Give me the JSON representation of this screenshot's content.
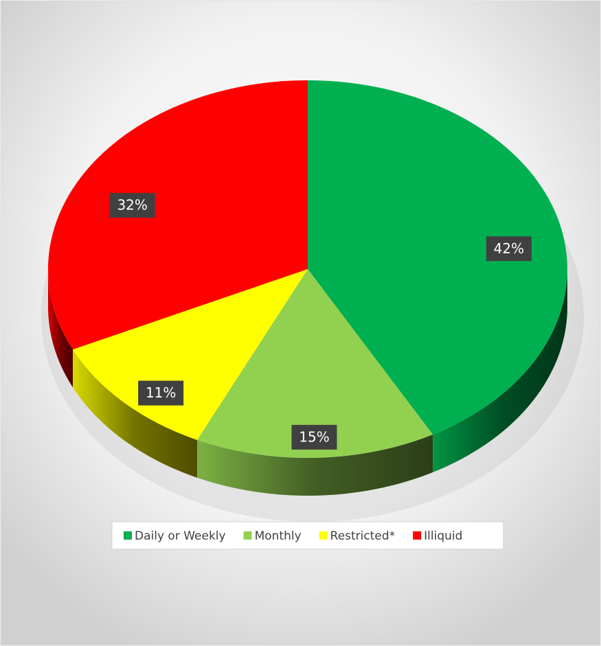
{
  "chart_data": {
    "type": "pie",
    "categories": [
      "Daily or Weekly",
      "Monthly",
      "Restricted*",
      "Illiquid"
    ],
    "values": [
      42,
      15,
      11,
      32
    ],
    "value_labels": [
      "42%",
      "15%",
      "11%",
      "32%"
    ],
    "colors": [
      "#00b050",
      "#92d050",
      "#ffff00",
      "#ff0000"
    ],
    "legend": "bottom"
  }
}
